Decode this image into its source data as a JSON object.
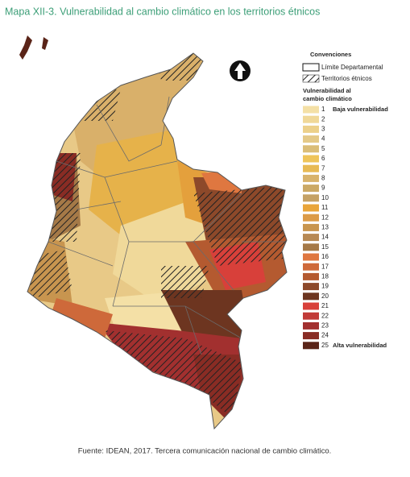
{
  "header": {
    "title": "Mapa XII-3. Vulnerabilidad al cambio climático en los territorios étnicos"
  },
  "legend": {
    "title": "Convenciones",
    "boundary": "Límite Departamental",
    "ethnic": "Territorios étnicos",
    "scale_title_1": "Vulnerabilidad al",
    "scale_title_2": "cambio climático",
    "items": [
      {
        "number": "1",
        "label": "Baja vulnerabilidad",
        "color": "#f4e0a6"
      },
      {
        "number": "2",
        "color": "#f0d898"
      },
      {
        "number": "3",
        "color": "#ecd08a"
      },
      {
        "number": "4",
        "color": "#e4c988"
      },
      {
        "number": "5",
        "color": "#dabd78"
      },
      {
        "number": "6",
        "color": "#eec45a"
      },
      {
        "number": "7",
        "color": "#e7ba54"
      },
      {
        "number": "8",
        "color": "#d8b36c"
      },
      {
        "number": "9",
        "color": "#cba966"
      },
      {
        "number": "10",
        "color": "#c5a266"
      },
      {
        "number": "11",
        "color": "#e9a53a"
      },
      {
        "number": "12",
        "color": "#dc9b47"
      },
      {
        "number": "13",
        "color": "#c8954f"
      },
      {
        "number": "14",
        "color": "#b78954"
      },
      {
        "number": "15",
        "color": "#a57947"
      },
      {
        "number": "16",
        "color": "#df7740"
      },
      {
        "number": "17",
        "color": "#ce693a"
      },
      {
        "number": "18",
        "color": "#b45a30"
      },
      {
        "number": "19",
        "color": "#8d492a"
      },
      {
        "number": "20",
        "color": "#6d3520"
      },
      {
        "number": "21",
        "color": "#d8403a"
      },
      {
        "number": "22",
        "color": "#c13a37"
      },
      {
        "number": "23",
        "color": "#a2302f"
      },
      {
        "number": "24",
        "color": "#892c24"
      },
      {
        "number": "25",
        "label": "Alta vulnerabilidad",
        "color": "#5a2418"
      }
    ]
  },
  "source": "Fuente: IDEAN, 2017. Tercera comunicación nacional de cambio climático."
}
